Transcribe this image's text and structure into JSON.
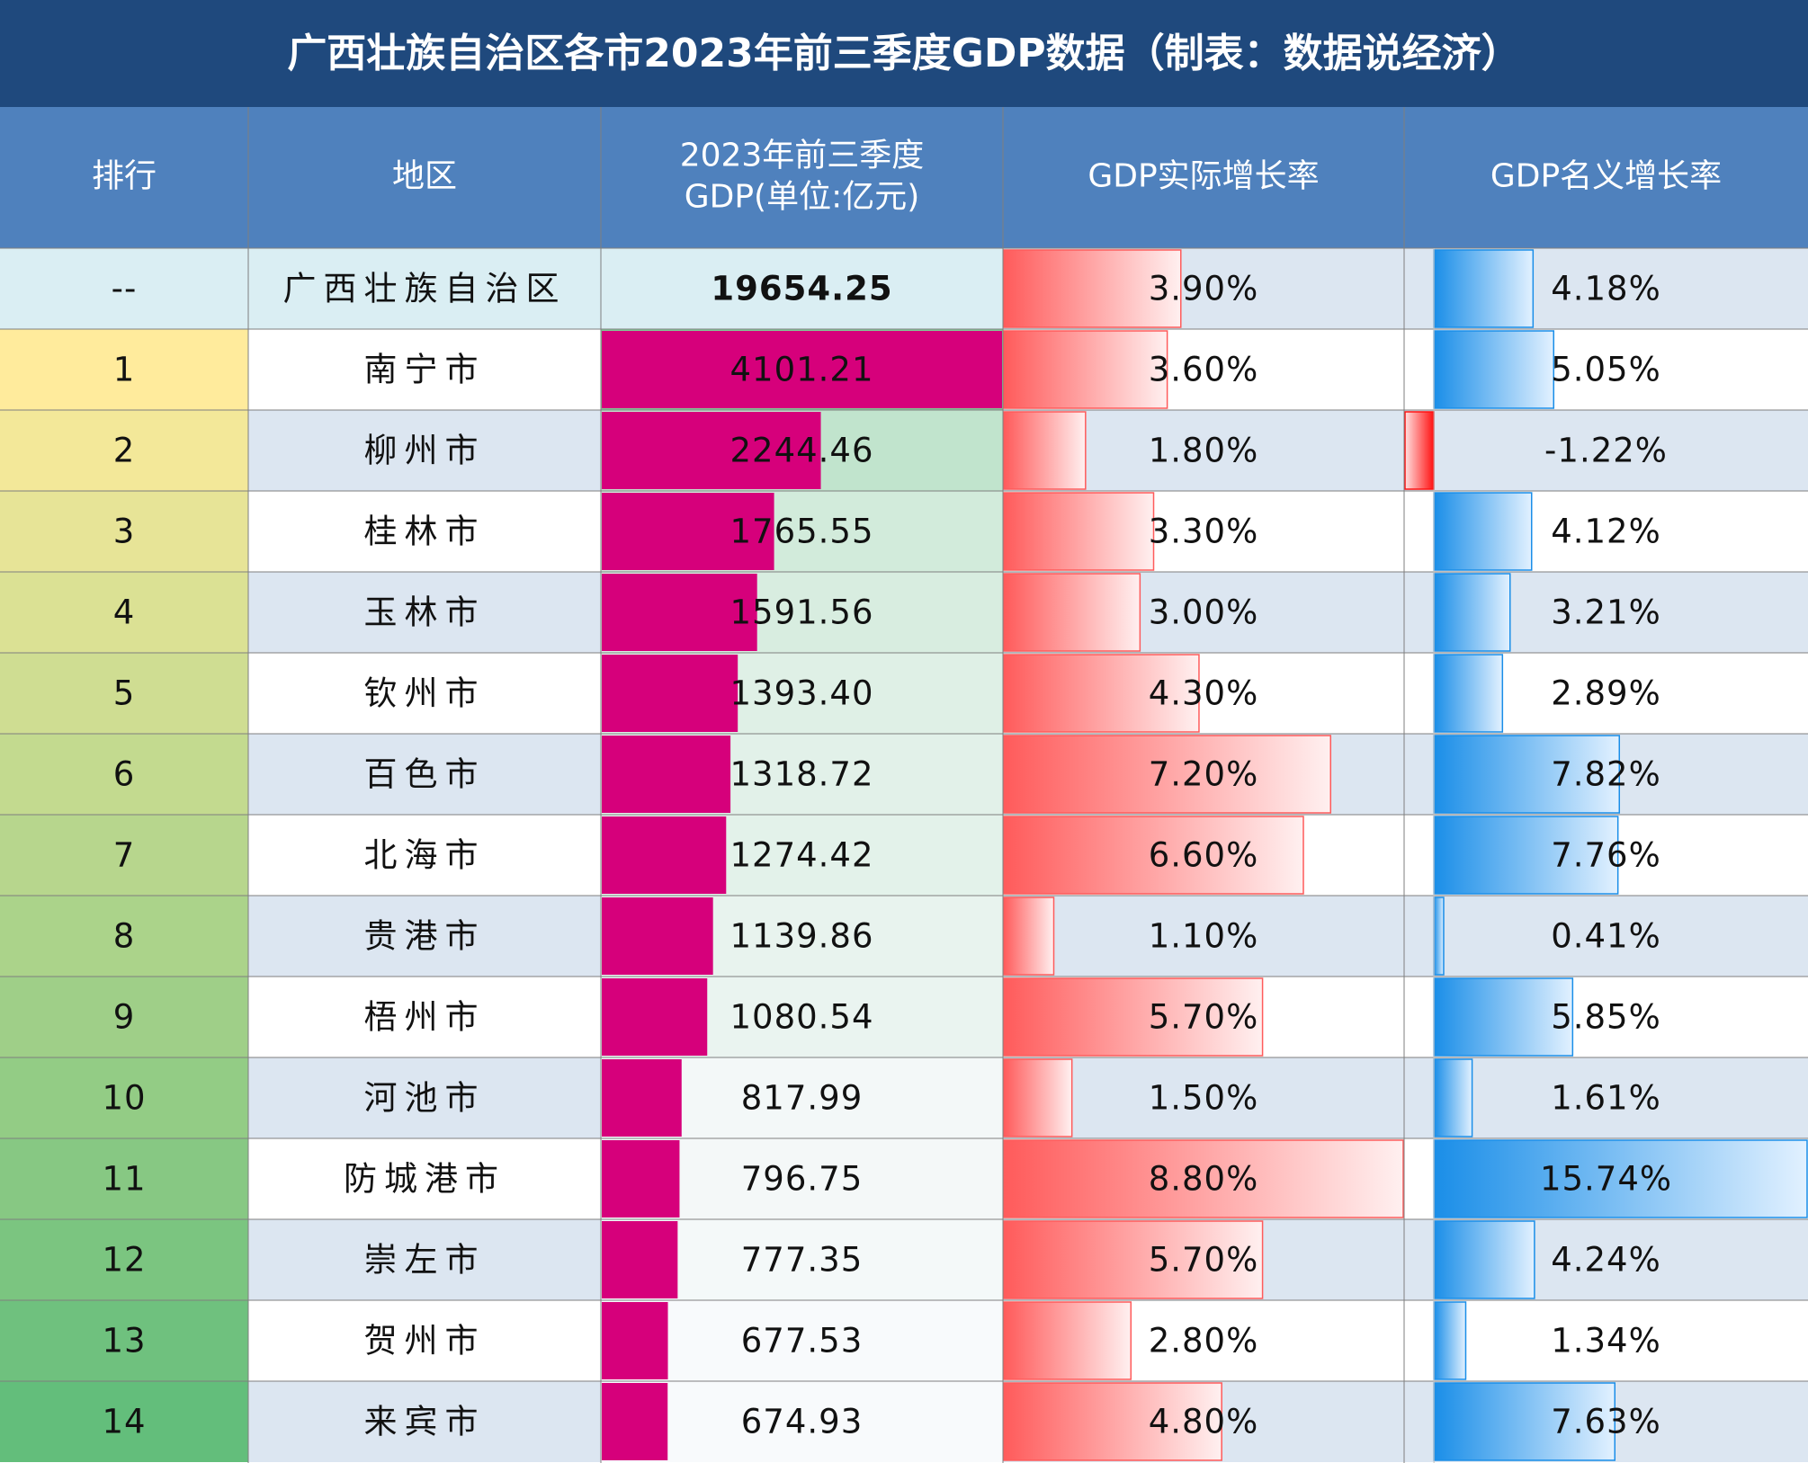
{
  "title": "广西壮族自治区各市2023年前三季度GDP数据（制表：数据说经济）",
  "table": {
    "header": [
      "排行",
      "地区",
      [
        "2023年前三季度",
        "GDP(单位:亿元)"
      ],
      "GDP实际增长率",
      "GDP名义增长率"
    ],
    "rows": [
      [
        "--",
        "广西壮族自治区",
        "19654.25",
        "3.90%",
        "4.18%"
      ],
      [
        "1",
        "南宁市",
        "4101.21",
        "3.60%",
        "5.05%"
      ],
      [
        "2",
        "柳州市",
        "2244.46",
        "1.80%",
        "-1.22%"
      ],
      [
        "3",
        "桂林市",
        "1765.55",
        "3.30%",
        "4.12%"
      ],
      [
        "4",
        "玉林市",
        "1591.56",
        "3.00%",
        "3.21%"
      ],
      [
        "5",
        "钦州市",
        "1393.40",
        "4.30%",
        "2.89%"
      ],
      [
        "6",
        "百色市",
        "1318.72",
        "7.20%",
        "7.82%"
      ],
      [
        "7",
        "北海市",
        "1274.42",
        "6.60%",
        "7.76%"
      ],
      [
        "8",
        "贵港市",
        "1139.86",
        "1.10%",
        "0.41%"
      ],
      [
        "9",
        "梧州市",
        "1080.54",
        "5.70%",
        "5.85%"
      ],
      [
        "10",
        "河池市",
        "817.99",
        "1.50%",
        "1.61%"
      ],
      [
        "11",
        "防城港市",
        "796.75",
        "8.80%",
        "15.74%"
      ],
      [
        "12",
        "崇左市",
        "777.35",
        "5.70%",
        "4.24%"
      ],
      [
        "13",
        "贺州市",
        "677.53",
        "2.80%",
        "1.34%"
      ],
      [
        "14",
        "来宾市",
        "674.93",
        "4.80%",
        "7.63%"
      ]
    ]
  }
}
